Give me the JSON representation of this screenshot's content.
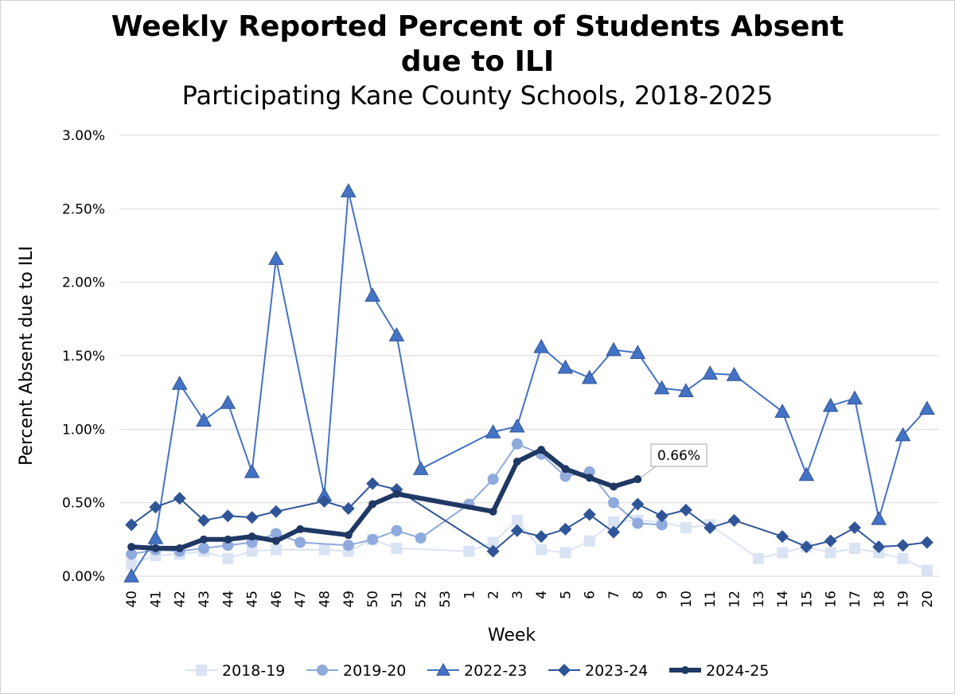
{
  "chart_data": {
    "type": "line",
    "title": "Weekly Reported Percent of Students Absent",
    "title_line2": "due to ILI",
    "subtitle": "Participating Kane County Schools, 2018-2025",
    "xlabel": "Week",
    "ylabel": "Percent Absent due to ILI",
    "categories": [
      "40",
      "41",
      "42",
      "43",
      "44",
      "45",
      "46",
      "47",
      "48",
      "49",
      "50",
      "51",
      "52",
      "53",
      "1",
      "2",
      "3",
      "4",
      "5",
      "6",
      "7",
      "8",
      "9",
      "10",
      "11",
      "12",
      "13",
      "14",
      "15",
      "16",
      "17",
      "18",
      "19",
      "20"
    ],
    "ylim": [
      0,
      3.0
    ],
    "yticks": [
      {
        "v": 0,
        "label": "0.00%"
      },
      {
        "v": 0.5,
        "label": "0.50%"
      },
      {
        "v": 1.0,
        "label": "1.00%"
      },
      {
        "v": 1.5,
        "label": "1.50%"
      },
      {
        "v": 2.0,
        "label": "2.00%"
      },
      {
        "v": 2.5,
        "label": "2.50%"
      },
      {
        "v": 3.0,
        "label": "3.00%"
      }
    ],
    "grid": "horizontal",
    "legend_position": "bottom",
    "series": [
      {
        "name": "2018-19",
        "color": "#dae3f3",
        "marker": "square",
        "lineWidth": 2,
        "markerSize": 7,
        "values": [
          0.08,
          0.14,
          0.15,
          0.17,
          0.12,
          0.17,
          0.18,
          null,
          0.18,
          0.17,
          0.25,
          0.19,
          null,
          null,
          0.17,
          0.23,
          0.38,
          0.18,
          0.16,
          0.24,
          0.37,
          0.38,
          0.37,
          0.33,
          0.35,
          null,
          0.12,
          0.16,
          0.2,
          0.16,
          0.19,
          0.16,
          0.12,
          0.04
        ]
      },
      {
        "name": "2019-20",
        "color": "#8faadc",
        "marker": "circle",
        "lineWidth": 2,
        "markerSize": 7,
        "values": [
          0.15,
          0.18,
          0.17,
          0.19,
          0.21,
          0.23,
          0.29,
          0.23,
          null,
          0.21,
          0.25,
          0.31,
          0.26,
          null,
          0.49,
          0.66,
          0.9,
          0.83,
          0.68,
          0.71,
          0.5,
          0.36,
          0.35,
          null,
          null,
          null,
          null,
          null,
          null,
          null,
          null,
          null,
          null,
          null
        ]
      },
      {
        "name": "2022-23",
        "color": "#4472c4",
        "marker": "triangle",
        "lineWidth": 2,
        "markerSize": 9,
        "values": [
          0.0,
          0.26,
          1.31,
          1.06,
          1.18,
          0.71,
          2.16,
          null,
          0.55,
          2.62,
          1.91,
          1.64,
          0.73,
          null,
          null,
          0.98,
          1.02,
          1.56,
          1.42,
          1.35,
          1.54,
          1.52,
          1.28,
          1.26,
          1.38,
          1.37,
          null,
          1.12,
          0.69,
          1.16,
          1.21,
          0.39,
          0.96,
          1.14
        ]
      },
      {
        "name": "2023-24",
        "color": "#2f5597",
        "marker": "diamond",
        "lineWidth": 2,
        "markerSize": 8,
        "values": [
          0.35,
          0.47,
          0.53,
          0.38,
          0.41,
          0.4,
          0.44,
          null,
          0.51,
          0.46,
          0.63,
          0.59,
          null,
          null,
          null,
          0.17,
          0.31,
          0.27,
          0.32,
          0.42,
          0.3,
          0.49,
          0.41,
          0.45,
          0.33,
          0.38,
          null,
          0.27,
          0.2,
          0.24,
          0.33,
          0.2,
          0.21,
          0.23
        ]
      },
      {
        "name": "2024-25",
        "color": "#1f3864",
        "marker": "circle",
        "lineWidth": 6,
        "markerSize": 5,
        "values": [
          0.2,
          0.19,
          0.19,
          0.25,
          0.25,
          0.27,
          0.24,
          0.32,
          null,
          0.28,
          0.49,
          0.56,
          null,
          null,
          null,
          0.44,
          0.78,
          0.86,
          0.73,
          0.67,
          0.61,
          0.66,
          null,
          null,
          null,
          null,
          null,
          null,
          null,
          null,
          null,
          null,
          null,
          null
        ]
      }
    ],
    "annotation": {
      "series": "2024-25",
      "category": "8",
      "label": "0.66%"
    }
  }
}
